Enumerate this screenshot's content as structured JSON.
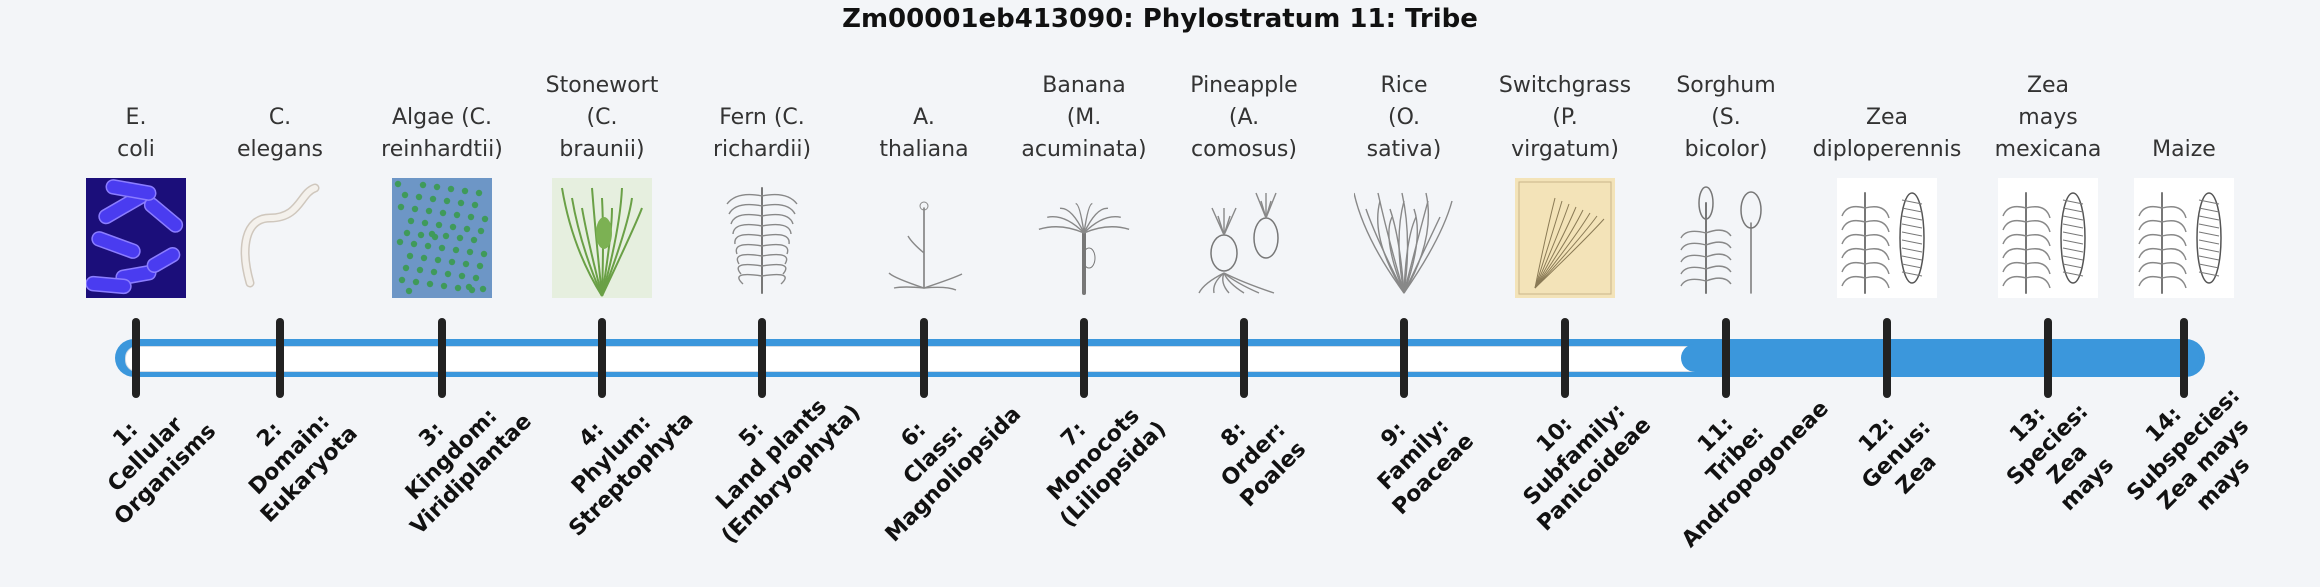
{
  "title": "Zm00001eb413090: Phylostratum 11: Tribe",
  "selected_index": 11,
  "total": 14,
  "strata": [
    {
      "label": "E.\ncoli",
      "rank_num": "1:",
      "rank_name": "Cellular\nOrganisms",
      "image": "bacteria-image"
    },
    {
      "label": "C.\nelegans",
      "rank_num": "2:",
      "rank_name": "Domain:\nEukaryota",
      "image": "worm-image"
    },
    {
      "label": "Algae (C.\nreinhardtii)",
      "rank_num": "3:",
      "rank_name": "Kingdom:\nViridiplantae",
      "image": "algae-image"
    },
    {
      "label": "Stonewort\n(C.\nbraunii)",
      "rank_num": "4:",
      "rank_name": "Phylum:\nStreptophyta",
      "image": "stonewort-image"
    },
    {
      "label": "Fern (C.\nrichardii)",
      "rank_num": "5:",
      "rank_name": "Land plants\n(Embryophyta)",
      "image": "fern-image"
    },
    {
      "label": "A.\nthaliana",
      "rank_num": "6:",
      "rank_name": "Class:\nMagnoliopsida",
      "image": "arabidopsis-image"
    },
    {
      "label": "Banana\n(M.\nacuminata)",
      "rank_num": "7:",
      "rank_name": "Monocots\n(Liliopsida)",
      "image": "banana-image"
    },
    {
      "label": "Pineapple\n(A.\ncomosus)",
      "rank_num": "8:",
      "rank_name": "Order:\nPoales",
      "image": "pineapple-image"
    },
    {
      "label": "Rice\n(O.\nsativa)",
      "rank_num": "9:",
      "rank_name": "Family:\nPoaceae",
      "image": "rice-image"
    },
    {
      "label": "Switchgrass\n(P.\nvirgatum)",
      "rank_num": "10:",
      "rank_name": "Subfamily:\nPanicoideae",
      "image": "switchgrass-image"
    },
    {
      "label": "Sorghum\n(S.\nbicolor)",
      "rank_num": "11:",
      "rank_name": "Tribe:\nAndropogoneae",
      "image": "sorghum-image"
    },
    {
      "label": "Zea\ndiploperennis",
      "rank_num": "12:",
      "rank_name": "Genus:\nZea",
      "image": "zea-diploperennis-image"
    },
    {
      "label": "Zea\nmays\nmexicana",
      "rank_num": "13:",
      "rank_name": "Species:\nZea\nmays",
      "image": "zea-mexicana-image"
    },
    {
      "label": "Maize",
      "rank_num": "14:",
      "rank_name": "Subspecies:\nZea mays\nmays",
      "image": "maize-image"
    }
  ],
  "colors": {
    "accent": "#3b97dc",
    "tick": "#222222",
    "background": "#f3f5f8"
  }
}
